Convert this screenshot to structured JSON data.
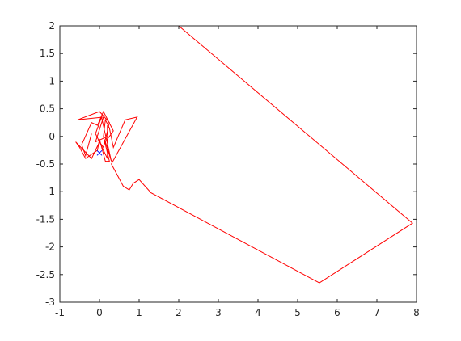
{
  "chart_data": {
    "type": "line",
    "title": "",
    "xlabel": "",
    "ylabel": "",
    "xlim": [
      -1,
      8
    ],
    "ylim": [
      -3,
      2
    ],
    "grid": false,
    "legend": "none",
    "x_ticks": [
      -1,
      0,
      1,
      2,
      3,
      4,
      5,
      6,
      7,
      8
    ],
    "x_tick_labels": [
      "-1",
      "0",
      "1",
      "2",
      "3",
      "4",
      "5",
      "6",
      "7",
      "8"
    ],
    "y_ticks": [
      2,
      1.5,
      1,
      0.5,
      0,
      -0.5,
      -1,
      -1.5,
      -2,
      -2.5,
      -3
    ],
    "y_tick_labels": [
      "2",
      "1.5",
      "1",
      "0.5",
      "0",
      "-0.5",
      "-1",
      "-1.5",
      "-2",
      "-2.5",
      "-3"
    ],
    "series": [
      {
        "color": "#ff0000",
        "points": [
          [
            -0.2,
            0.05
          ],
          [
            -0.35,
            -0.35
          ],
          [
            -0.45,
            -0.15
          ],
          [
            -0.2,
            0.25
          ],
          [
            -0.05,
            0.2
          ],
          [
            0.1,
            0.45
          ],
          [
            0.35,
            0.1
          ],
          [
            0.15,
            -0.1
          ],
          [
            0.3,
            -0.45
          ],
          [
            0.05,
            0.35
          ],
          [
            -0.1,
            0.05
          ],
          [
            0.2,
            -0.4
          ],
          [
            0.2,
            0.2
          ],
          [
            0.2,
            0.0
          ],
          [
            -0.1,
            -0.1
          ],
          [
            0.1,
            0.35
          ],
          [
            -0.55,
            0.3
          ],
          [
            0.0,
            0.45
          ],
          [
            0.25,
            0.25
          ],
          [
            0.1,
            -0.2
          ],
          [
            0.0,
            -0.1
          ],
          [
            -0.2,
            -0.4
          ],
          [
            -0.6,
            -0.1
          ],
          [
            -0.5,
            -0.2
          ],
          [
            -0.35,
            -0.4
          ],
          [
            -0.05,
            -0.25
          ],
          [
            0.0,
            -0.05
          ],
          [
            0.15,
            -0.45
          ],
          [
            0.25,
            -0.45
          ],
          [
            0.1,
            0.0
          ],
          [
            0.15,
            0.3
          ],
          [
            0.25,
            0.15
          ],
          [
            0.35,
            -0.2
          ],
          [
            0.65,
            0.3
          ],
          [
            0.95,
            0.35
          ],
          [
            0.3,
            -0.5
          ],
          [
            0.6,
            -0.9
          ],
          [
            0.75,
            -0.97
          ],
          [
            0.85,
            -0.85
          ],
          [
            1.0,
            -0.78
          ],
          [
            1.3,
            -1.02
          ],
          [
            5.55,
            -2.65
          ],
          [
            7.9,
            -1.57
          ],
          [
            2.0,
            2.0
          ]
        ]
      },
      {
        "color": "#0000ff",
        "marker": "x",
        "points": [
          [
            0.0,
            -0.3
          ]
        ]
      }
    ]
  }
}
